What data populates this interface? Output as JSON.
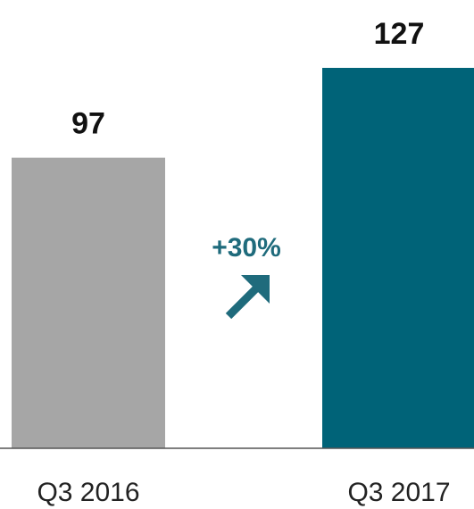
{
  "chart_data": {
    "type": "bar",
    "categories": [
      "Q3 2016",
      "Q3 2017"
    ],
    "values": [
      97,
      127
    ],
    "colors": [
      "#a6a6a6",
      "#006378"
    ],
    "annotation": "+30%"
  }
}
